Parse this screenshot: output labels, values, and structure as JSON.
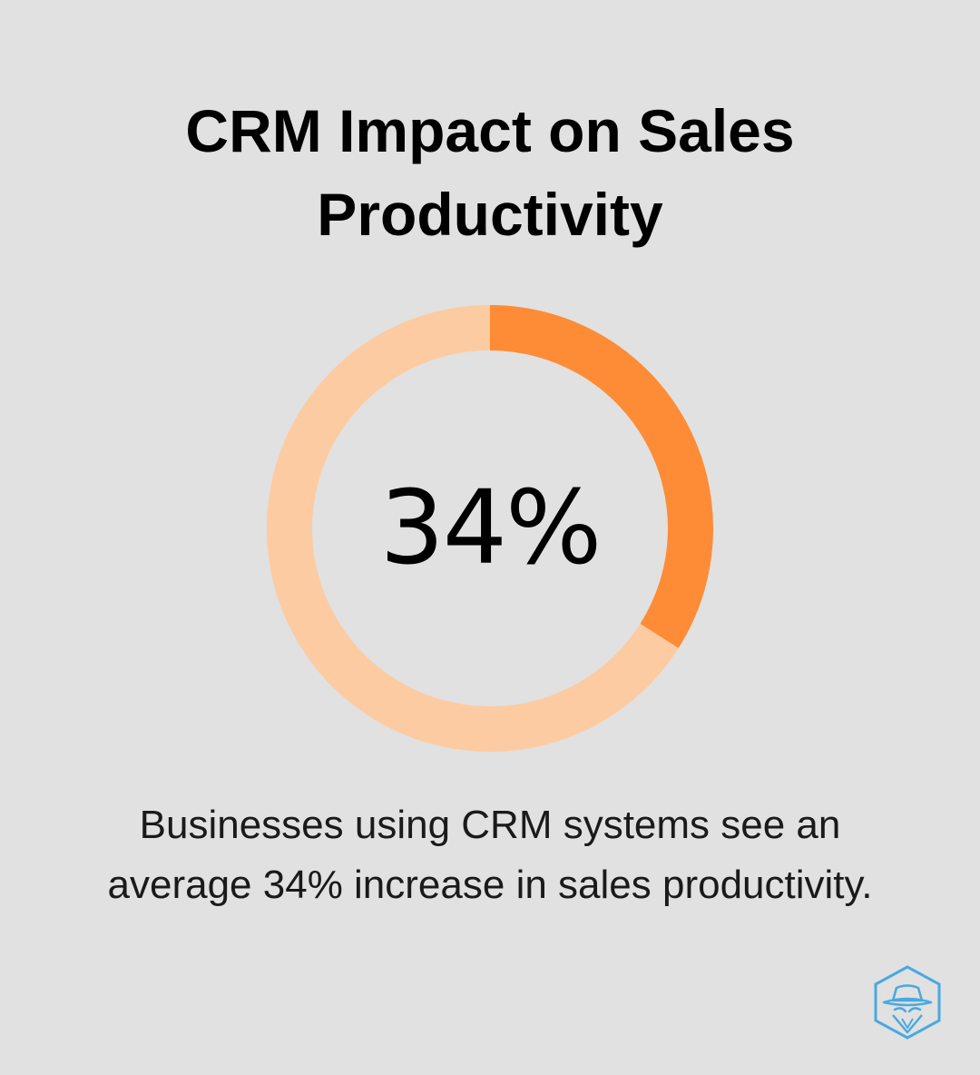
{
  "header": {
    "title_line1": "CRM Impact on Sales",
    "title_line2": "Productivity"
  },
  "chart_data": {
    "type": "pie",
    "variant": "donut",
    "title": "CRM Impact on Sales Productivity",
    "center_label": "34%",
    "slices": [
      {
        "label": "",
        "value": 34,
        "color": "#fe8c37"
      },
      {
        "label": "",
        "value": 66,
        "color": "#fdcba2"
      }
    ]
  },
  "caption": {
    "line1": "Businesses using CRM systems see an",
    "line2": "average 34% increase in sales productivity."
  },
  "logo": {
    "icon": "spy-hat-hexagon-icon",
    "color": "#4aa9e0"
  }
}
